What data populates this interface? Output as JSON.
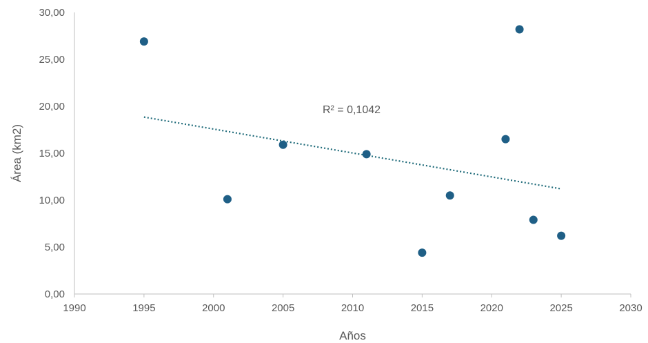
{
  "chart_data": {
    "type": "scatter",
    "xlabel": "Años",
    "ylabel": "Área (km2)",
    "xlim": [
      1990,
      2030
    ],
    "ylim": [
      0,
      30
    ],
    "x_ticks": [
      "1990",
      "1995",
      "2000",
      "2005",
      "2010",
      "2015",
      "2020",
      "2025",
      "2030"
    ],
    "y_ticks": [
      "0,00",
      "5,00",
      "10,00",
      "15,00",
      "20,00",
      "25,00",
      "30,00"
    ],
    "grid": false,
    "series": [
      {
        "points": [
          {
            "x": 1995,
            "y": 26.9
          },
          {
            "x": 2001,
            "y": 10.1
          },
          {
            "x": 2005,
            "y": 15.9
          },
          {
            "x": 2011,
            "y": 14.9
          },
          {
            "x": 2015,
            "y": 4.4
          },
          {
            "x": 2017,
            "y": 10.5
          },
          {
            "x": 2021,
            "y": 16.5
          },
          {
            "x": 2022,
            "y": 28.2
          },
          {
            "x": 2023,
            "y": 7.9
          },
          {
            "x": 2025,
            "y": 6.2
          }
        ],
        "color": "#1f5f86"
      }
    ],
    "trendline": {
      "type": "linear",
      "style": "dotted",
      "color": "#1f6b7a",
      "x_start": 1995,
      "y_start": 18.85,
      "x_end": 2025,
      "y_end": 11.2,
      "r2_label": "R² = 0,1042"
    }
  }
}
